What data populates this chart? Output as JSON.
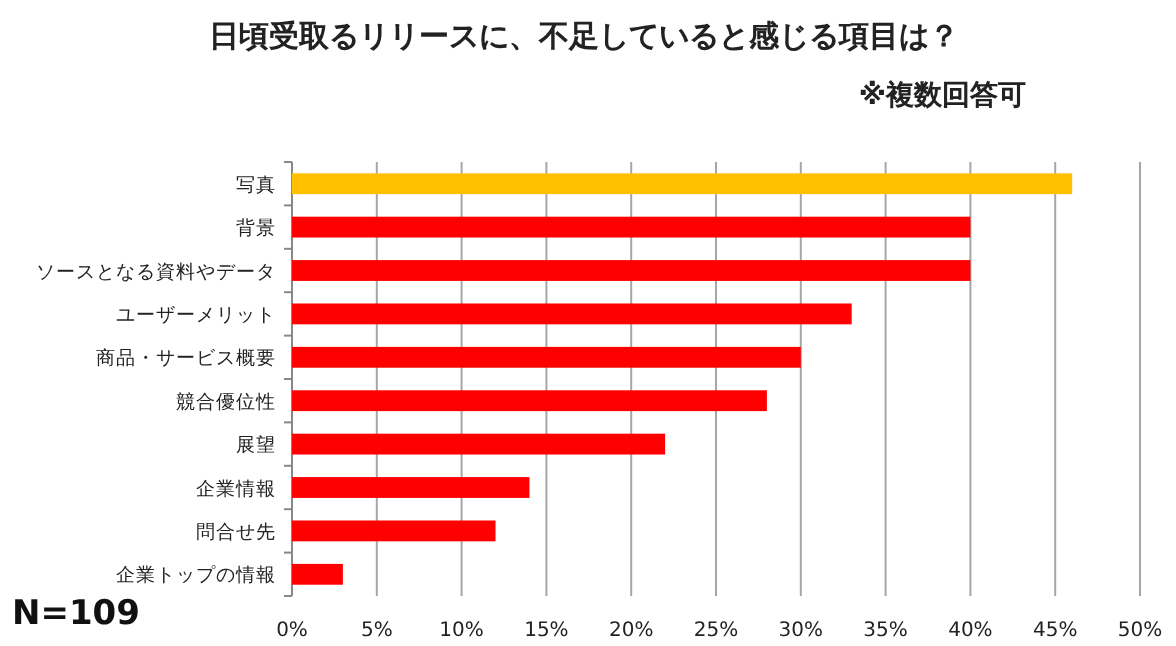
{
  "chart_data": {
    "type": "bar",
    "orientation": "horizontal",
    "title": "日頃受取るリリースに、不足していると感じる項目は？",
    "subtitle": "※複数回答可",
    "annotations": [
      "N=109"
    ],
    "categories": [
      "写真",
      "背景",
      "ソースとなる資料やデータ",
      "ユーザーメリット",
      "商品・サービス概要",
      "競合優位性",
      "展望",
      "企業情報",
      "問合せ先",
      "企業トップの情報"
    ],
    "values": [
      46,
      40,
      40,
      33,
      30,
      28,
      22,
      14,
      12,
      3
    ],
    "colors": [
      "#ffc000",
      "#ff0000",
      "#ff0000",
      "#ff0000",
      "#ff0000",
      "#ff0000",
      "#ff0000",
      "#ff0000",
      "#ff0000",
      "#ff0000"
    ],
    "xlim": [
      0,
      50
    ],
    "xticks": [
      {
        "value": 0,
        "label": "0%"
      },
      {
        "value": 5,
        "label": "5%"
      },
      {
        "value": 10,
        "label": "10%"
      },
      {
        "value": 15,
        "label": "15%"
      },
      {
        "value": 20,
        "label": "20%"
      },
      {
        "value": 25,
        "label": "25%"
      },
      {
        "value": 30,
        "label": "30%"
      },
      {
        "value": 35,
        "label": "35%"
      },
      {
        "value": 40,
        "label": "40%"
      },
      {
        "value": 45,
        "label": "45%"
      },
      {
        "value": 50,
        "label": "50%"
      }
    ],
    "grid": "x"
  }
}
